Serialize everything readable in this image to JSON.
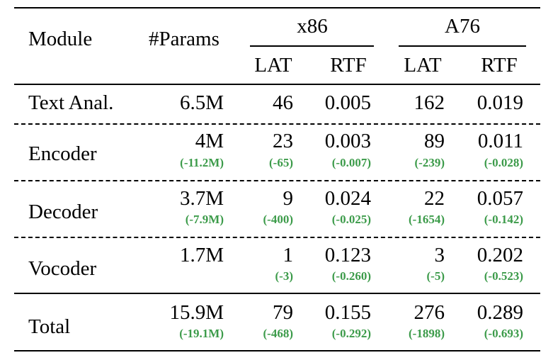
{
  "table": {
    "header": {
      "module": "Module",
      "params": "#Params",
      "group_x86": "x86",
      "group_a76": "A76",
      "lat": "LAT",
      "rtf": "RTF"
    },
    "rows": [
      {
        "module": "Text Anal.",
        "params": "6.5M",
        "params_delta": "",
        "x86_lat": "46",
        "x86_lat_delta": "",
        "x86_rtf": "0.005",
        "x86_rtf_delta": "",
        "a76_lat": "162",
        "a76_lat_delta": "",
        "a76_rtf": "0.019",
        "a76_rtf_delta": ""
      },
      {
        "module": "Encoder",
        "params": "4M",
        "params_delta": "(-11.2M)",
        "x86_lat": "23",
        "x86_lat_delta": "(-65)",
        "x86_rtf": "0.003",
        "x86_rtf_delta": "(-0.007)",
        "a76_lat": "89",
        "a76_lat_delta": "(-239)",
        "a76_rtf": "0.011",
        "a76_rtf_delta": "(-0.028)"
      },
      {
        "module": "Decoder",
        "params": "3.7M",
        "params_delta": "(-7.9M)",
        "x86_lat": "9",
        "x86_lat_delta": "(-400)",
        "x86_rtf": "0.024",
        "x86_rtf_delta": "(-0.025)",
        "a76_lat": "22",
        "a76_lat_delta": "(-1654)",
        "a76_rtf": "0.057",
        "a76_rtf_delta": "(-0.142)"
      },
      {
        "module": "Vocoder",
        "params": "1.7M",
        "params_delta": "",
        "x86_lat": "1",
        "x86_lat_delta": "(-3)",
        "x86_rtf": "0.123",
        "x86_rtf_delta": "(-0.260)",
        "a76_lat": "3",
        "a76_lat_delta": "(-5)",
        "a76_rtf": "0.202",
        "a76_rtf_delta": "(-0.523)"
      },
      {
        "module": "Total",
        "params": "15.9M",
        "params_delta": "(-19.1M)",
        "x86_lat": "79",
        "x86_lat_delta": "(-468)",
        "x86_rtf": "0.155",
        "x86_rtf_delta": "(-0.292)",
        "a76_lat": "276",
        "a76_lat_delta": "(-1898)",
        "a76_rtf": "0.289",
        "a76_rtf_delta": "(-0.693)"
      }
    ],
    "colors": {
      "delta_green": "#3c9b4a"
    }
  }
}
